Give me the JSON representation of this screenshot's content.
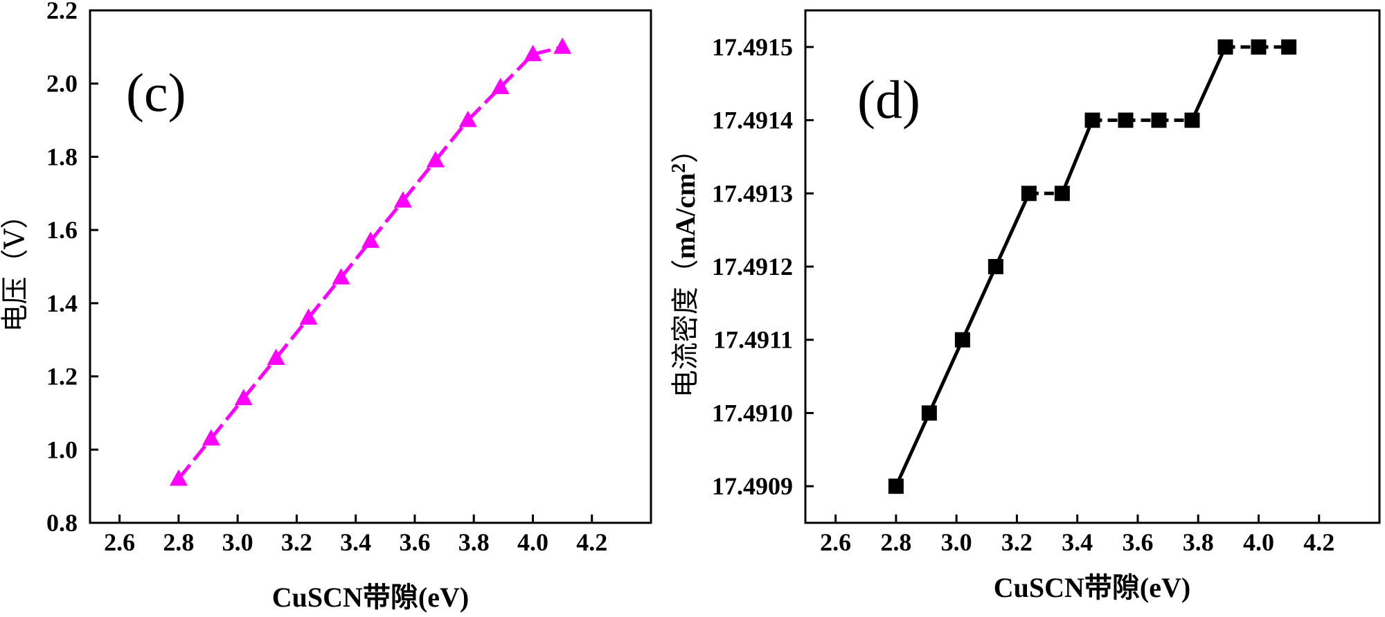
{
  "chart_data": [
    {
      "type": "line",
      "panel_label": "(c)",
      "xlabel": "CuSCN带隙(eV)",
      "ylabel": "电压（V）",
      "xlim": [
        2.5,
        4.4
      ],
      "ylim": [
        0.8,
        2.2
      ],
      "xticks": [
        2.6,
        2.8,
        3.0,
        3.2,
        3.4,
        3.6,
        3.8,
        4.0,
        4.2
      ],
      "xtick_labels": [
        "2.6",
        "2.8",
        "3.0",
        "3.2",
        "3.4",
        "3.6",
        "3.8",
        "4.0",
        "4.2"
      ],
      "yticks": [
        0.8,
        1.0,
        1.2,
        1.4,
        1.6,
        1.8,
        2.0,
        2.2
      ],
      "ytick_labels": [
        "0.8",
        "1.0",
        "1.2",
        "1.4",
        "1.6",
        "1.8",
        "2.0",
        "2.2"
      ],
      "marker": "triangle",
      "line_style": "dashed",
      "color": "#ff00ff",
      "series": [
        {
          "name": "电压",
          "x": [
            2.8,
            2.91,
            3.02,
            3.13,
            3.24,
            3.35,
            3.45,
            3.56,
            3.67,
            3.78,
            3.89,
            4.0,
            4.1
          ],
          "values": [
            0.92,
            1.03,
            1.14,
            1.25,
            1.36,
            1.47,
            1.57,
            1.68,
            1.79,
            1.9,
            1.99,
            2.08,
            2.1
          ]
        }
      ]
    },
    {
      "type": "line",
      "panel_label": "(d)",
      "xlabel": "CuSCN带隙(eV)",
      "ylabel_text": "电流密度（",
      "ylabel_unit": "mA/cm",
      "ylabel_sup": "2",
      "ylabel_close": "）",
      "xlim": [
        2.5,
        4.4
      ],
      "ylim": [
        17.49085,
        17.49155
      ],
      "xticks": [
        2.6,
        2.8,
        3.0,
        3.2,
        3.4,
        3.6,
        3.8,
        4.0,
        4.2
      ],
      "xtick_labels": [
        "2.6",
        "2.8",
        "3.0",
        "3.2",
        "3.4",
        "3.6",
        "3.8",
        "4.0",
        "4.2"
      ],
      "yticks": [
        17.4909,
        17.491,
        17.4911,
        17.4912,
        17.4913,
        17.4914,
        17.4915
      ],
      "ytick_labels": [
        "17.4909",
        "17.4910",
        "17.4911",
        "17.4912",
        "17.4913",
        "17.4914",
        "17.4915"
      ],
      "marker": "square",
      "line_style": "dash-solid",
      "color": "#000000",
      "series": [
        {
          "name": "电流密度",
          "x": [
            2.8,
            2.91,
            3.02,
            3.13,
            3.24,
            3.35,
            3.45,
            3.56,
            3.67,
            3.78,
            3.89,
            4.0,
            4.1
          ],
          "values": [
            17.4909,
            17.491,
            17.4911,
            17.4912,
            17.4913,
            17.4913,
            17.4914,
            17.4914,
            17.4914,
            17.4914,
            17.4915,
            17.4915,
            17.4915
          ]
        }
      ]
    }
  ]
}
